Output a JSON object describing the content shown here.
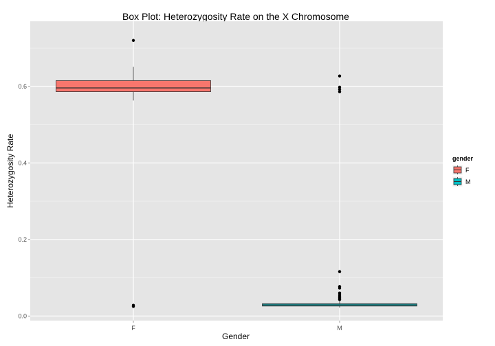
{
  "chart_data": {
    "type": "box",
    "title": "Box Plot: Heterozygosity Rate on the X Chromosome",
    "xlabel": "Gender",
    "ylabel": "Heterozygosity Rate",
    "ylim": [
      -0.012,
      0.77
    ],
    "y_ticks": [
      0.0,
      0.2,
      0.4,
      0.6
    ],
    "y_tick_labels": [
      "0.0",
      "0.2",
      "0.4",
      "0.6"
    ],
    "categories": [
      "F",
      "M"
    ],
    "grid": true,
    "legend": {
      "title": "gender",
      "position": "right",
      "entries": [
        "F",
        "M"
      ]
    },
    "colors": {
      "F": "#f8766d",
      "M": "#00bfc4",
      "panel": "#e5e5e5",
      "grid": "#ffffff"
    },
    "boxes": [
      {
        "category": "F",
        "whisker_low": 0.563,
        "q1": 0.586,
        "median": 0.596,
        "q3": 0.615,
        "whisker_high": 0.651,
        "outliers": [
          0.72,
          0.028,
          0.025
        ]
      },
      {
        "category": "M",
        "whisker_low": 0.022,
        "q1": 0.026,
        "median": 0.029,
        "q3": 0.032,
        "whisker_high": 0.04,
        "outliers": [
          0.627,
          0.598,
          0.592,
          0.586,
          0.116,
          0.077,
          0.073,
          0.06,
          0.055,
          0.052,
          0.048,
          0.045,
          0.043
        ]
      }
    ]
  }
}
